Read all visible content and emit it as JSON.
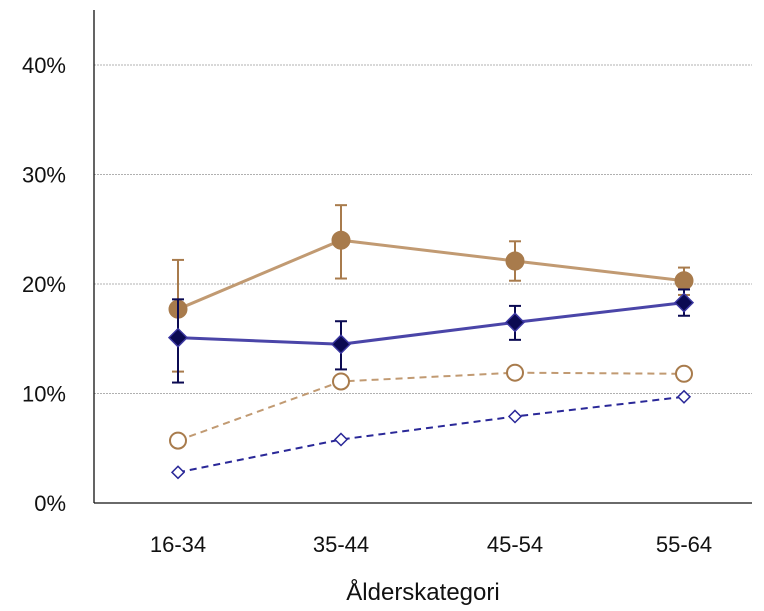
{
  "chart_data": {
    "type": "line",
    "title": "",
    "xlabel": "Ålderskategori",
    "ylabel": "",
    "categories": [
      "16-34",
      "35-44",
      "45-54",
      "55-64"
    ],
    "yticks": [
      "0%",
      "10%",
      "20%",
      "30%",
      "40%"
    ],
    "ylim": [
      0,
      0.4
    ],
    "grid": true,
    "legend": "none",
    "series": [
      {
        "color": "#a87b4c",
        "line_color": "#c19a72",
        "line_style": "solid",
        "marker": "filled-circle",
        "values": [
          0.177,
          0.24,
          0.221,
          0.203
        ],
        "error_low": [
          0.12,
          0.205,
          0.203,
          0.19
        ],
        "error_high": [
          0.222,
          0.272,
          0.239,
          0.215
        ]
      },
      {
        "color": "#0b0a52",
        "line_color": "#4a45a8",
        "line_style": "solid",
        "marker": "filled-diamond",
        "values": [
          0.151,
          0.145,
          0.165,
          0.183
        ],
        "error_low": [
          0.11,
          0.122,
          0.149,
          0.171
        ],
        "error_high": [
          0.186,
          0.166,
          0.18,
          0.195
        ]
      },
      {
        "color": "#a87b4c",
        "line_color": "#c19a72",
        "line_style": "dashed",
        "marker": "open-circle",
        "values": [
          0.057,
          0.111,
          0.119,
          0.118
        ]
      },
      {
        "color": "#2a2898",
        "line_color": "#2a2898",
        "line_style": "dashed",
        "marker": "open-diamond",
        "values": [
          0.028,
          0.058,
          0.079,
          0.097
        ]
      }
    ]
  }
}
